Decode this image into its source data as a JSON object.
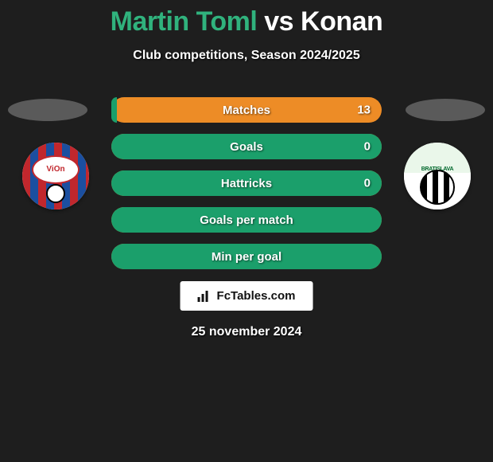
{
  "title": {
    "player1": "Martin Toml",
    "vs": "vs",
    "player2": "Konan"
  },
  "subtitle": "Club competitions, Season 2024/2025",
  "colors": {
    "player1_accent": "#30b27d",
    "bar_left": "#1b9f6b",
    "bar_right": "#ed8c26",
    "background": "#1e1e1e",
    "text": "#ffffff"
  },
  "club_left": {
    "name": "FC ViOn",
    "label": "ViOn"
  },
  "club_right": {
    "name": "FC Petrzalka Bratislava",
    "label": "BRATISLAVA"
  },
  "stats": [
    {
      "label": "Matches",
      "v1": "",
      "v2": "13",
      "fill_left_pct": 2
    },
    {
      "label": "Goals",
      "v1": "",
      "v2": "0",
      "fill_left_pct": 0,
      "full_green": true
    },
    {
      "label": "Hattricks",
      "v1": "",
      "v2": "0",
      "fill_left_pct": 0,
      "full_green": true
    },
    {
      "label": "Goals per match",
      "v1": "",
      "v2": "",
      "fill_left_pct": 0,
      "full_green": true
    },
    {
      "label": "Min per goal",
      "v1": "",
      "v2": "",
      "fill_left_pct": 0,
      "full_green": true
    }
  ],
  "watermark": "FcTables.com",
  "date": "25 november 2024"
}
